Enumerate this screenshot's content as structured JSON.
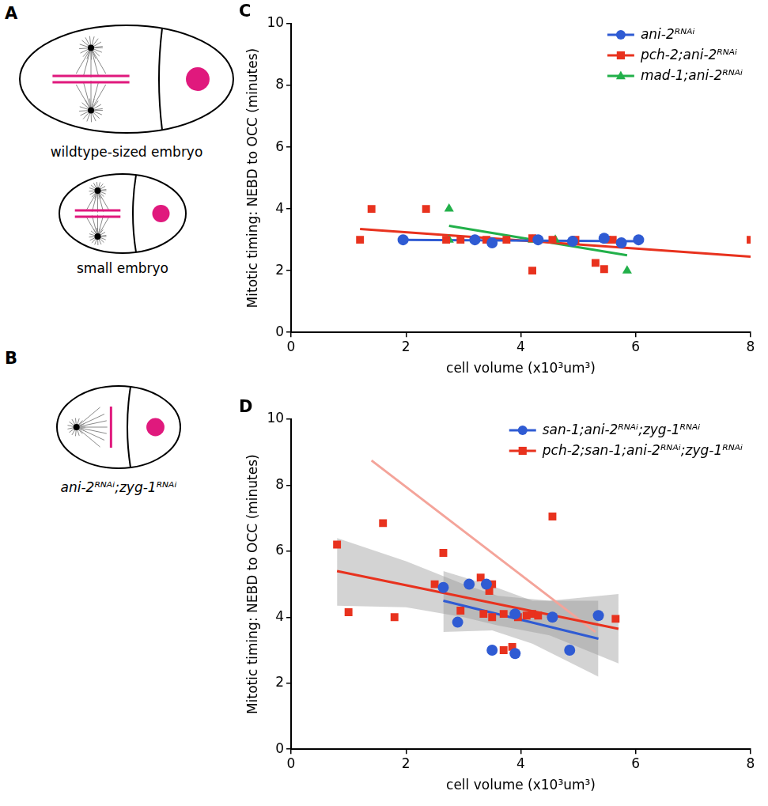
{
  "diagrams": [
    {
      "panel": "A",
      "labels": [
        "wildtype-sized embryo",
        "small embryo"
      ]
    },
    {
      "panel": "B",
      "labels": [
        "ani-2ᴿᴺᴬⁱ;zyg-1ᴿᴺᴬⁱ"
      ]
    }
  ],
  "chart_data": [
    {
      "panel": "C",
      "type": "scatter",
      "xlabel": "cell volume (x10³um³)",
      "ylabel": "Mitotic timing: NEBD to OCC (minutes)",
      "xlim": [
        0,
        8
      ],
      "xticks": [
        0,
        2,
        4,
        6,
        8
      ],
      "ylim": [
        0,
        10
      ],
      "yticks": [
        0,
        2,
        4,
        6,
        8,
        10
      ],
      "grid": false,
      "legend": "upper right",
      "series": [
        {
          "name": "ani-2ᴿᴺᴬⁱ",
          "color": "#2f5bd3",
          "marker": "circle",
          "x": [
            1.95,
            3.2,
            3.5,
            4.3,
            4.9,
            5.45,
            5.75,
            6.05
          ],
          "values": [
            3.0,
            3.0,
            2.9,
            3.0,
            2.95,
            3.05,
            2.9,
            3.0
          ],
          "fit": {
            "x": [
              1.9,
              6.1
            ],
            "y": [
              3.0,
              2.95
            ]
          }
        },
        {
          "name": "pch-2;ani-2ᴿᴺᴬⁱ",
          "color": "#e8321e",
          "marker": "square",
          "x": [
            1.2,
            1.4,
            2.35,
            2.7,
            2.95,
            3.4,
            3.75,
            4.2,
            4.2,
            4.55,
            4.95,
            5.3,
            5.45,
            5.5,
            5.6,
            8.0
          ],
          "values": [
            3.0,
            4.0,
            4.0,
            3.0,
            3.0,
            3.0,
            3.0,
            3.05,
            2.0,
            3.0,
            3.0,
            2.25,
            2.05,
            3.0,
            3.0,
            3.0
          ],
          "fit": {
            "x": [
              1.2,
              8.0
            ],
            "y": [
              3.35,
              2.45
            ]
          }
        },
        {
          "name": "mad-1;ani-2ᴿᴺᴬⁱ",
          "color": "#22b04a",
          "marker": "triangle",
          "x": [
            2.75,
            2.75,
            3.2,
            4.2,
            4.6,
            5.85
          ],
          "values": [
            4.0,
            3.0,
            3.0,
            3.0,
            3.0,
            2.0
          ],
          "fit": {
            "x": [
              2.75,
              5.85
            ],
            "y": [
              3.45,
              2.5
            ]
          }
        }
      ]
    },
    {
      "panel": "D",
      "type": "scatter",
      "xlabel": "cell volume (x10³um³)",
      "ylabel": "Mitotic timing: NEBD to OCC (minutes)",
      "xlim": [
        0,
        8
      ],
      "xticks": [
        0,
        2,
        4,
        6,
        8
      ],
      "ylim": [
        0,
        10
      ],
      "yticks": [
        0,
        2,
        4,
        6,
        8,
        10
      ],
      "grid": false,
      "legend": "upper right",
      "series": [
        {
          "name": "san-1;ani-2ᴿᴺᴬⁱ;zyg-1ᴿᴺᴬⁱ",
          "color": "#2f5bd3",
          "marker": "circle",
          "x": [
            2.65,
            2.9,
            3.1,
            3.4,
            3.5,
            3.9,
            3.9,
            4.55,
            4.85,
            5.35
          ],
          "values": [
            4.9,
            3.85,
            5.0,
            5.0,
            3.0,
            4.1,
            2.9,
            4.0,
            3.0,
            4.05
          ],
          "fit": {
            "x": [
              2.65,
              5.35
            ],
            "y": [
              4.5,
              3.35
            ]
          },
          "band": {
            "x": [
              2.65,
              3.5,
              4.2,
              5.35
            ],
            "lower": [
              3.55,
              3.6,
              3.2,
              2.2
            ],
            "upper": [
              5.4,
              4.95,
              4.5,
              4.5
            ]
          }
        },
        {
          "name": "pch-2;san-1;ani-2ᴿᴺᴬⁱ;zyg-1ᴿᴺᴬⁱ",
          "color": "#e8321e",
          "marker": "square",
          "x": [
            0.8,
            1.0,
            1.6,
            1.8,
            2.5,
            2.65,
            2.95,
            3.3,
            3.35,
            3.45,
            3.5,
            3.5,
            3.7,
            3.7,
            3.85,
            3.95,
            4.1,
            4.2,
            4.3,
            4.55,
            5.65
          ],
          "values": [
            6.2,
            4.15,
            6.85,
            4.0,
            5.0,
            5.95,
            4.2,
            5.2,
            4.1,
            4.8,
            5.0,
            4.0,
            4.1,
            3.0,
            3.1,
            4.0,
            4.05,
            4.1,
            4.05,
            7.05,
            3.95
          ],
          "fit": {
            "x": [
              0.8,
              5.7
            ],
            "y": [
              5.4,
              3.65
            ]
          },
          "band": {
            "x": [
              0.8,
              2.0,
              3.0,
              3.6,
              4.5,
              5.7
            ],
            "lower": [
              4.35,
              4.3,
              4.0,
              3.75,
              3.45,
              2.6
            ],
            "upper": [
              6.4,
              5.7,
              5.0,
              4.65,
              4.5,
              4.7
            ]
          }
        }
      ],
      "lines": [
        {
          "color": "#f4a49a",
          "x": [
            1.4,
            5.3
          ],
          "y": [
            8.75,
            3.55
          ]
        }
      ]
    }
  ]
}
